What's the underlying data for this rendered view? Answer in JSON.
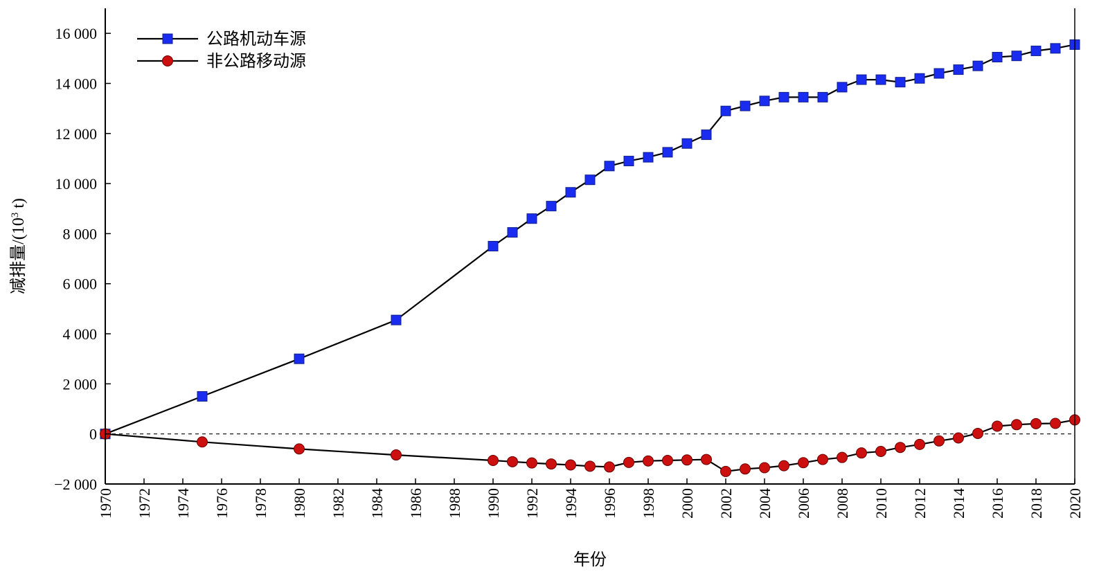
{
  "chart_data": {
    "type": "line",
    "xlabel": "年份",
    "ylabel": "减排量/(10³ t)",
    "ylabel_parts": {
      "main": "减排量/(10",
      "sup": "3",
      "tail": " t)"
    },
    "xlim": [
      1970,
      2020
    ],
    "ylim": [
      -2000,
      17000
    ],
    "x_ticks": [
      1970,
      1972,
      1974,
      1976,
      1978,
      1980,
      1982,
      1984,
      1986,
      1988,
      1990,
      1992,
      1994,
      1996,
      1998,
      2000,
      2002,
      2004,
      2006,
      2008,
      2010,
      2012,
      2014,
      2016,
      2018,
      2020
    ],
    "y_ticks": [
      -2000,
      0,
      2000,
      4000,
      6000,
      8000,
      10000,
      12000,
      14000,
      16000
    ],
    "y_tick_labels": [
      "−2 000",
      "0",
      "2 000",
      "4 000",
      "6 000",
      "8 000",
      "10 000",
      "12 000",
      "14 000",
      "16 000"
    ],
    "zero_line": "dashed",
    "grid": false,
    "legend_position": "top-left",
    "series": [
      {
        "name": "公路机动车源",
        "marker": "square",
        "color": "#1a2cf0",
        "line_color": "#000000",
        "x": [
          1970,
          1975,
          1980,
          1985,
          1990,
          1991,
          1992,
          1993,
          1994,
          1995,
          1996,
          1997,
          1998,
          1999,
          2000,
          2001,
          2002,
          2003,
          2004,
          2005,
          2006,
          2007,
          2008,
          2009,
          2010,
          2011,
          2012,
          2013,
          2014,
          2015,
          2016,
          2017,
          2018,
          2019,
          2020
        ],
        "y": [
          0,
          1500,
          3000,
          4550,
          7500,
          8050,
          8600,
          9100,
          9650,
          10150,
          10700,
          10900,
          11050,
          11250,
          11600,
          11950,
          12900,
          13100,
          13300,
          13450,
          13450,
          13450,
          13850,
          14150,
          14150,
          14050,
          14200,
          14400,
          14550,
          14700,
          15050,
          15100,
          15300,
          15400,
          15550
        ]
      },
      {
        "name": "非公路移动源",
        "marker": "circle",
        "color": "#cc1010",
        "line_color": "#000000",
        "x": [
          1970,
          1975,
          1980,
          1985,
          1990,
          1991,
          1992,
          1993,
          1994,
          1995,
          1996,
          1997,
          1998,
          1999,
          2000,
          2001,
          2002,
          2003,
          2004,
          2005,
          2006,
          2007,
          2008,
          2009,
          2010,
          2011,
          2012,
          2013,
          2014,
          2015,
          2016,
          2017,
          2018,
          2019,
          2020
        ],
        "y": [
          0,
          -320,
          -600,
          -840,
          -1060,
          -1110,
          -1160,
          -1200,
          -1240,
          -1290,
          -1320,
          -1140,
          -1080,
          -1060,
          -1040,
          -1020,
          -1500,
          -1400,
          -1350,
          -1270,
          -1150,
          -1020,
          -940,
          -760,
          -700,
          -540,
          -420,
          -280,
          -160,
          20,
          310,
          370,
          410,
          420,
          560
        ]
      }
    ]
  }
}
